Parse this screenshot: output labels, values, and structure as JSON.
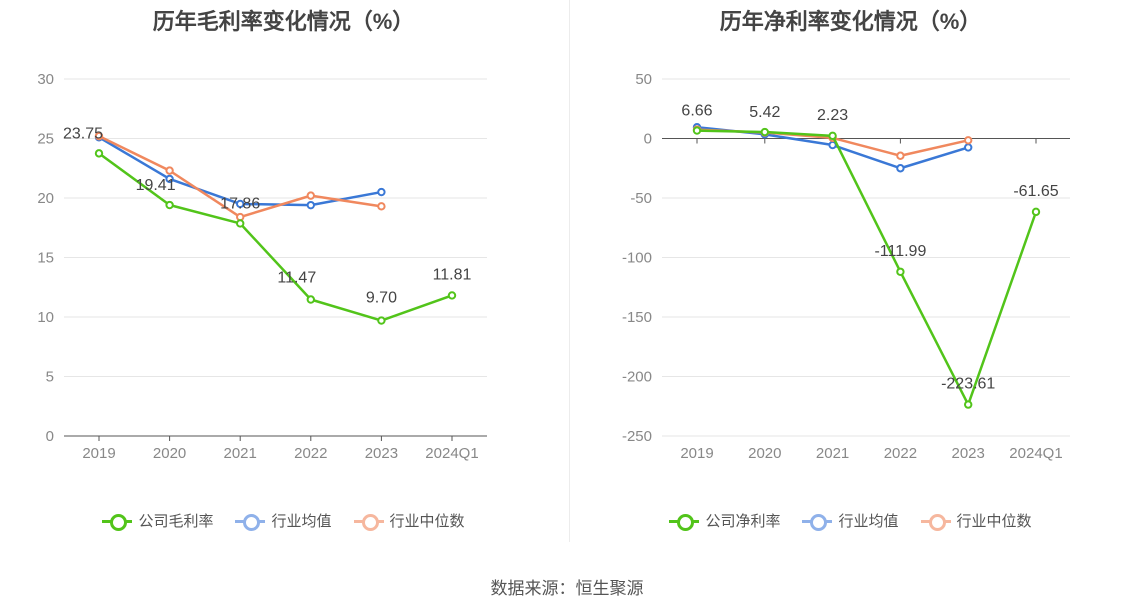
{
  "source": "数据来源：恒生聚源",
  "chart_data": [
    {
      "type": "line",
      "title": "历年毛利率变化情况（%）",
      "categories": [
        "2019",
        "2020",
        "2021",
        "2022",
        "2023",
        "2024Q1"
      ],
      "ylim": [
        0,
        30
      ],
      "yticks": [
        0,
        5,
        10,
        15,
        20,
        25,
        30
      ],
      "grid": true,
      "legend_position": "bottom",
      "series": [
        {
          "name": "公司毛利率",
          "color": "#52c41a",
          "values": [
            23.75,
            19.41,
            17.86,
            11.47,
            9.7,
            11.81
          ],
          "labels": [
            "23.75",
            "19.41",
            "17.86",
            "11.47",
            "9.70",
            "11.81"
          ]
        },
        {
          "name": "行业均值",
          "color": "#3a78d6",
          "legend_color": "#8fb1ea",
          "values": [
            25.1,
            21.6,
            19.5,
            19.4,
            20.5,
            null
          ]
        },
        {
          "name": "行业中位数",
          "color": "#f0885e",
          "legend_color": "#f6b79e",
          "values": [
            25.2,
            22.3,
            18.4,
            20.2,
            19.3,
            null
          ]
        }
      ]
    },
    {
      "type": "line",
      "title": "历年净利率变化情况（%）",
      "categories": [
        "2019",
        "2020",
        "2021",
        "2022",
        "2023",
        "2024Q1"
      ],
      "ylim": [
        -250,
        50
      ],
      "yticks": [
        -250,
        -200,
        -150,
        -100,
        -50,
        0,
        50
      ],
      "grid": true,
      "legend_position": "bottom",
      "series": [
        {
          "name": "公司净利率",
          "color": "#52c41a",
          "values": [
            6.66,
            5.42,
            2.23,
            -111.99,
            -223.61,
            -61.65
          ],
          "labels": [
            "6.66",
            "5.42",
            "2.23",
            "-111.99",
            "-223.61",
            "-61.65"
          ]
        },
        {
          "name": "行业均值",
          "color": "#3a78d6",
          "legend_color": "#8fb1ea",
          "values": [
            9.5,
            3.5,
            -5.5,
            -25.0,
            -7.5,
            null
          ]
        },
        {
          "name": "行业中位数",
          "color": "#f0885e",
          "legend_color": "#f6b79e",
          "values": [
            7.5,
            5.0,
            0.5,
            -14.5,
            -1.5,
            null
          ]
        }
      ]
    }
  ]
}
